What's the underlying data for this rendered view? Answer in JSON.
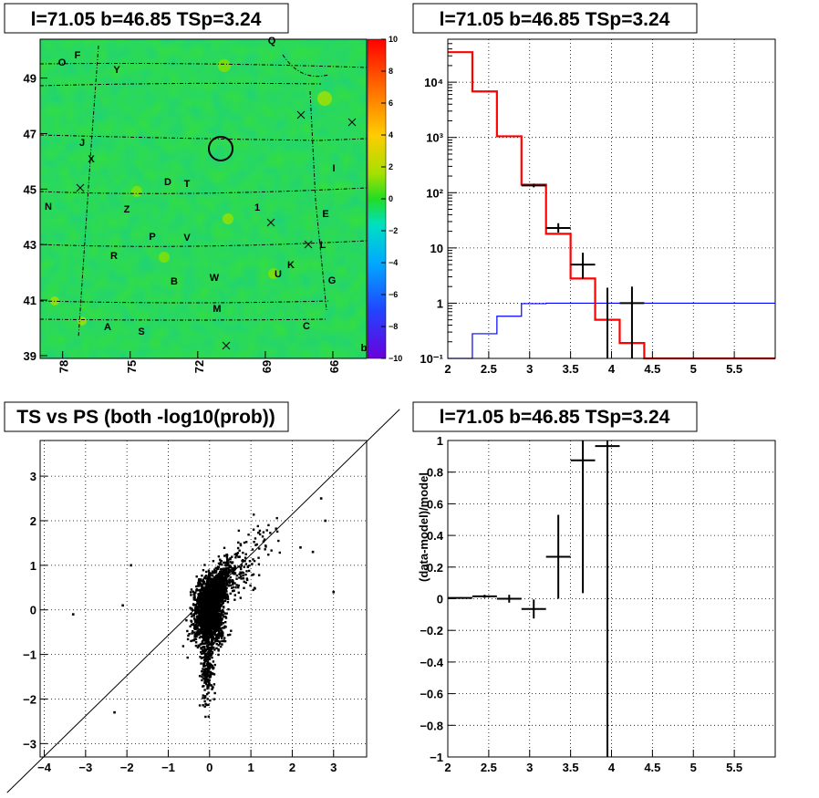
{
  "chart_data": [
    {
      "id": "sky_map",
      "type": "heatmap",
      "title": "l=71.05 b=46.85 TSp=3.24",
      "x_ticks": [
        "78",
        "75",
        "72",
        "69",
        "66"
      ],
      "y_ticks": [
        "49",
        "47",
        "45",
        "43",
        "41",
        "39"
      ],
      "colorbar_ticks": [
        "10",
        "8",
        "6",
        "4",
        "2",
        "0",
        "−2",
        "−4",
        "−6",
        "−8",
        "−10"
      ],
      "zlim": [
        -10,
        10
      ],
      "x_range_deg": [
        79,
        64.5
      ],
      "y_range_deg": [
        38.9,
        50.4
      ],
      "source": {
        "l": 71.05,
        "b": 46.85
      },
      "tile_labels": [
        "O",
        "F",
        "Y",
        "Q",
        "J",
        "X",
        "I",
        "D",
        "T",
        "N",
        "Z",
        "1",
        "E",
        "P",
        "V",
        "L",
        "R",
        "U",
        "K",
        "B",
        "W",
        "G",
        "M",
        "A",
        "S",
        "C",
        "b"
      ]
    },
    {
      "id": "spectrum",
      "type": "line",
      "title": "l=71.05 b=46.85 TSp=3.24",
      "x_ticks": [
        "2",
        "2.5",
        "3",
        "3.5",
        "4",
        "4.5",
        "5",
        "5.5"
      ],
      "y_ticks": [
        "10⁴",
        "10³",
        "10²",
        "10",
        "1",
        "10⁻¹"
      ],
      "xlim": [
        2,
        6
      ],
      "ylim": [
        0.1,
        60000
      ],
      "yscale": "log",
      "grid": true,
      "bin_edges": [
        2.0,
        2.3,
        2.6,
        2.9,
        3.2,
        3.5,
        3.8,
        4.1,
        4.4,
        6.0
      ],
      "series": [
        {
          "values": [
            35000,
            6800,
            1050,
            140,
            18,
            2.8,
            0.5,
            0.19,
            0.1
          ],
          "color": "#ff0000"
        },
        {
          "values": [
            0.1,
            0.28,
            0.58,
            0.98,
            1.0,
            1.0,
            1.0,
            1.0,
            1.0
          ],
          "color": "#0000ff"
        }
      ],
      "data_points": [
        {
          "x": 3.05,
          "y": 135,
          "xerr": 0.15,
          "ylo": 125,
          "yhi": 145
        },
        {
          "x": 3.35,
          "y": 23,
          "xerr": 0.15,
          "ylo": 19,
          "yhi": 28
        },
        {
          "x": 3.65,
          "y": 5,
          "xerr": 0.15,
          "ylo": 2.8,
          "yhi": 8.2
        },
        {
          "x": 3.95,
          "y": 0.5,
          "xerr": 0.0,
          "ylo": 0.1,
          "yhi": 1.9
        },
        {
          "x": 4.25,
          "y": 1,
          "xerr": 0.15,
          "ylo": 0.1,
          "yhi": 2.0
        }
      ]
    },
    {
      "id": "ts_vs_ps",
      "type": "scatter",
      "title": "TS vs PS (both -log10(prob))",
      "x_ticks": [
        "−4",
        "−3",
        "−2",
        "−1",
        "0",
        "1",
        "2",
        "3"
      ],
      "y_ticks": [
        "3",
        "2",
        "1",
        "0",
        "−1",
        "−2",
        "−3"
      ],
      "xlim": [
        -4.1,
        3.8
      ],
      "ylim": [
        -3.3,
        3.8
      ],
      "grid": true,
      "diagonal_line": [
        [
          -4.9,
          -4.1
        ],
        [
          4.6,
          4.5
        ]
      ],
      "outliers": [
        [
          -3.3,
          -0.1
        ],
        [
          -2.3,
          -2.3
        ],
        [
          -1.9,
          1.0
        ],
        [
          -2.1,
          0.1
        ],
        [
          2.8,
          2.0
        ],
        [
          3.0,
          0.4
        ],
        [
          2.7,
          2.5
        ],
        [
          2.2,
          1.4
        ],
        [
          2.5,
          1.3
        ]
      ]
    },
    {
      "id": "residuals",
      "type": "scatter",
      "title": "l=71.05 b=46.85 TSp=3.24",
      "ylabel": "(data-model)/model",
      "x_ticks": [
        "2",
        "2.5",
        "3",
        "3.5",
        "4",
        "4.5",
        "5",
        "5.5"
      ],
      "y_ticks": [
        "1",
        "0.8",
        "0.6",
        "0.4",
        "0.2",
        "0",
        "−0.2",
        "−0.4",
        "−0.6",
        "−0.8",
        "−1"
      ],
      "xlim": [
        2,
        6
      ],
      "ylim": [
        -1,
        1
      ],
      "grid": true,
      "points": [
        {
          "x": 2.15,
          "y": 0.005,
          "xerr": 0.15,
          "yerr": 0.005
        },
        {
          "x": 2.45,
          "y": 0.015,
          "xerr": 0.15,
          "yerr": 0.01
        },
        {
          "x": 2.75,
          "y": 0.0,
          "xerr": 0.15,
          "yerr": 0.025
        },
        {
          "x": 3.05,
          "y": -0.065,
          "xerr": 0.15,
          "yerr": 0.06
        },
        {
          "x": 3.35,
          "y": 0.265,
          "xerr": 0.15,
          "yerr": 0.265
        },
        {
          "x": 3.65,
          "y": 0.875,
          "xerr": 0.15,
          "yerr": 0.84
        },
        {
          "x": 3.95,
          "y": 0.965,
          "xerr": 0.15,
          "yerr": 2.0
        }
      ]
    }
  ]
}
